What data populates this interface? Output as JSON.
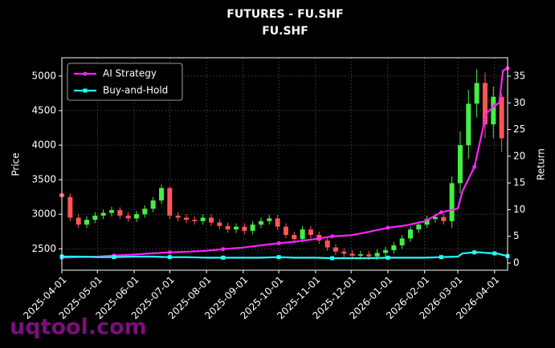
{
  "chart_data": {
    "type": "candlestick",
    "title": "FUTURES - FU.SHF",
    "subtitle": "FU.SHF",
    "y_label": "Price",
    "y2_label": "Return",
    "watermark": "uqtool.com",
    "xlim": [
      "2025-04-01",
      "2026-04-12"
    ],
    "xticks": [
      "2025-04-01",
      "2025-05-01",
      "2025-06-01",
      "2025-07-01",
      "2025-08-01",
      "2025-09-01",
      "2025-10-01",
      "2025-11-01",
      "2025-12-01",
      "2026-01-01",
      "2026-02-01",
      "2026-03-01",
      "2026-04-01"
    ],
    "ylim": [
      2190,
      5265
    ],
    "yticks": [
      2500,
      3000,
      3500,
      4000,
      4500,
      5000
    ],
    "y2lim": [
      -1.35,
      38.45
    ],
    "y2ticks": [
      0,
      5,
      10,
      15,
      20,
      25,
      30,
      35
    ],
    "grid": true,
    "legend": "upper left",
    "up_color": "#44ee44",
    "down_color": "#ff5555",
    "candles": {
      "x": [
        "2025-04-01",
        "2025-04-08",
        "2025-04-15",
        "2025-04-22",
        "2025-04-29",
        "2025-05-06",
        "2025-05-13",
        "2025-05-20",
        "2025-05-27",
        "2025-06-03",
        "2025-06-10",
        "2025-06-17",
        "2025-06-24",
        "2025-07-01",
        "2025-07-08",
        "2025-07-15",
        "2025-07-22",
        "2025-07-29",
        "2025-08-05",
        "2025-08-12",
        "2025-08-19",
        "2025-08-26",
        "2025-09-02",
        "2025-09-09",
        "2025-09-16",
        "2025-09-23",
        "2025-09-30",
        "2025-10-07",
        "2025-10-14",
        "2025-10-21",
        "2025-10-28",
        "2025-11-04",
        "2025-11-11",
        "2025-11-18",
        "2025-11-25",
        "2025-12-02",
        "2025-12-09",
        "2025-12-16",
        "2025-12-23",
        "2025-12-30",
        "2026-01-06",
        "2026-01-13",
        "2026-01-20",
        "2026-01-27",
        "2026-02-03",
        "2026-02-10",
        "2026-02-17",
        "2026-02-24",
        "2026-03-03",
        "2026-03-10",
        "2026-03-17",
        "2026-03-24",
        "2026-03-31",
        "2026-04-07"
      ],
      "open": [
        3300,
        3250,
        2950,
        2850,
        2920,
        2980,
        3020,
        3060,
        2980,
        2940,
        3000,
        3080,
        3200,
        3380,
        2980,
        2950,
        2920,
        2900,
        2950,
        2880,
        2830,
        2780,
        2820,
        2760,
        2850,
        2900,
        2940,
        2820,
        2700,
        2640,
        2780,
        2700,
        2620,
        2520,
        2460,
        2430,
        2400,
        2420,
        2390,
        2440,
        2480,
        2550,
        2650,
        2780,
        2850,
        2930,
        2960,
        2900,
        3450,
        4000,
        4600,
        4900,
        4300,
        4700
      ],
      "high": [
        3350,
        3300,
        3000,
        2970,
        3030,
        3070,
        3110,
        3100,
        3030,
        3050,
        3130,
        3250,
        3430,
        3400,
        3030,
        3000,
        2970,
        3000,
        3000,
        2930,
        2880,
        2870,
        2870,
        2900,
        2950,
        2990,
        2990,
        2870,
        2750,
        2830,
        2830,
        2750,
        2670,
        2570,
        2510,
        2480,
        2470,
        2470,
        2490,
        2530,
        2600,
        2700,
        2830,
        2900,
        2980,
        3010,
        3010,
        3550,
        4200,
        4800,
        5100,
        5050,
        4850,
        4750
      ],
      "low": [
        3200,
        2900,
        2800,
        2800,
        2870,
        2930,
        2970,
        2930,
        2890,
        2890,
        2950,
        3030,
        3150,
        2930,
        2900,
        2870,
        2850,
        2850,
        2830,
        2780,
        2730,
        2730,
        2710,
        2710,
        2800,
        2850,
        2770,
        2650,
        2590,
        2590,
        2650,
        2570,
        2470,
        2410,
        2380,
        2350,
        2350,
        2340,
        2340,
        2390,
        2430,
        2500,
        2600,
        2730,
        2800,
        2880,
        2850,
        2800,
        3300,
        3800,
        4400,
        4100,
        4100,
        3900
      ],
      "close": [
        3250,
        2950,
        2850,
        2920,
        2980,
        3020,
        3060,
        2980,
        2940,
        3000,
        3080,
        3200,
        3380,
        2980,
        2950,
        2920,
        2900,
        2950,
        2880,
        2830,
        2780,
        2820,
        2760,
        2850,
        2900,
        2940,
        2820,
        2700,
        2640,
        2780,
        2700,
        2620,
        2520,
        2460,
        2430,
        2400,
        2420,
        2390,
        2440,
        2480,
        2550,
        2650,
        2780,
        2850,
        2930,
        2960,
        2900,
        3450,
        4000,
        4600,
        4900,
        4300,
        4700,
        4100
      ]
    },
    "return_x": [
      "2025-04-01",
      "2025-04-15",
      "2025-05-01",
      "2025-05-15",
      "2025-06-01",
      "2025-06-15",
      "2025-07-01",
      "2025-07-15",
      "2025-08-01",
      "2025-08-15",
      "2025-09-01",
      "2025-09-15",
      "2025-10-01",
      "2025-10-15",
      "2025-11-01",
      "2025-11-15",
      "2025-12-01",
      "2025-12-15",
      "2026-01-01",
      "2026-01-15",
      "2026-02-01",
      "2026-02-15",
      "2026-03-01",
      "2026-03-05",
      "2026-03-15",
      "2026-03-20",
      "2026-03-25",
      "2026-04-01",
      "2026-04-05",
      "2026-04-08",
      "2026-04-12"
    ],
    "series": [
      {
        "name": "AI Strategy",
        "color": "#ff22ff",
        "marker": "circle",
        "axis": "y2",
        "values": [
          1.0,
          1.1,
          1.2,
          1.4,
          1.6,
          1.8,
          2.0,
          2.1,
          2.3,
          2.6,
          2.9,
          3.3,
          3.7,
          4.0,
          4.5,
          5.0,
          5.2,
          5.8,
          6.6,
          7.0,
          7.8,
          9.5,
          10.2,
          13.5,
          18,
          23,
          28,
          29.5,
          30,
          36,
          36.5
        ]
      },
      {
        "name": "Buy-and-Hold",
        "color": "#22ffff",
        "marker": "square",
        "axis": "y2",
        "values": [
          1.2,
          1.2,
          1.1,
          1.1,
          1.2,
          1.2,
          1.1,
          1.1,
          1.0,
          1.0,
          1.0,
          1.0,
          1.1,
          1.0,
          1.0,
          0.9,
          0.9,
          0.9,
          1.0,
          1.0,
          1.0,
          1.1,
          1.2,
          1.8,
          2.0,
          2.0,
          1.9,
          1.8,
          1.7,
          1.5,
          1.3
        ]
      }
    ]
  }
}
